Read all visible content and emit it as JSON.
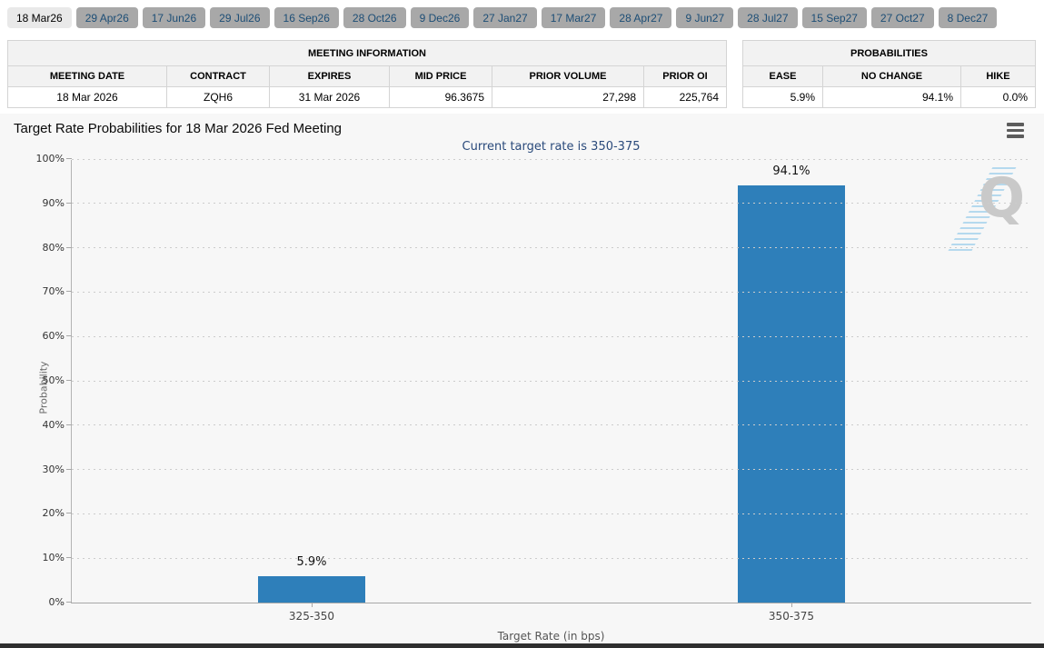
{
  "tabs": {
    "items": [
      {
        "label": "18 Mar26",
        "selected": true
      },
      {
        "label": "29 Apr26",
        "selected": false
      },
      {
        "label": "17 Jun26",
        "selected": false
      },
      {
        "label": "29 Jul26",
        "selected": false
      },
      {
        "label": "16 Sep26",
        "selected": false
      },
      {
        "label": "28 Oct26",
        "selected": false
      },
      {
        "label": "9 Dec26",
        "selected": false
      },
      {
        "label": "27 Jan27",
        "selected": false
      },
      {
        "label": "17 Mar27",
        "selected": false
      },
      {
        "label": "28 Apr27",
        "selected": false
      },
      {
        "label": "9 Jun27",
        "selected": false
      },
      {
        "label": "28 Jul27",
        "selected": false
      },
      {
        "label": "15 Sep27",
        "selected": false
      },
      {
        "label": "27 Oct27",
        "selected": false
      },
      {
        "label": "8 Dec27",
        "selected": false
      }
    ]
  },
  "meeting_info": {
    "title": "MEETING INFORMATION",
    "columns": [
      "MEETING DATE",
      "CONTRACT",
      "EXPIRES",
      "MID PRICE",
      "PRIOR VOLUME",
      "PRIOR OI"
    ],
    "row": [
      "18 Mar 2026",
      "ZQH6",
      "31 Mar 2026",
      "96.3675",
      "27,298",
      "225,764"
    ]
  },
  "probabilities": {
    "title": "PROBABILITIES",
    "columns": [
      "EASE",
      "NO CHANGE",
      "HIKE"
    ],
    "row": [
      "5.9%",
      "94.1%",
      "0.0%"
    ]
  },
  "chart_data": {
    "type": "bar",
    "title": "Target Rate Probabilities for 18 Mar 2026 Fed Meeting",
    "subtitle": "Current target rate is 350-375",
    "categories": [
      "325-350",
      "350-375"
    ],
    "values": [
      5.9,
      94.1
    ],
    "value_labels": [
      "5.9%",
      "94.1%"
    ],
    "xlabel": "Target Rate (in bps)",
    "ylabel": "Probability",
    "ylim": [
      0,
      100
    ],
    "y_ticks": [
      "0%",
      "10%",
      "20%",
      "30%",
      "40%",
      "50%",
      "60%",
      "70%",
      "80%",
      "90%",
      "100%"
    ],
    "legend": "none",
    "grid": "horizontal-dotted",
    "bar_color": "#2e7fba",
    "watermark": "Q"
  },
  "icons": {
    "menu": "chart-menu"
  },
  "colors": {
    "bar": "#2e7fba",
    "panel_bg": "#f7f7f7",
    "tab_selected_bg": "#e9e9e9",
    "tab_bg": "#a8a8a8",
    "tab_text": "#1d4e76",
    "subtitle_text": "#2a4a7b",
    "table_header_bg": "#f2f2f2",
    "footer_bar": "#2e2e2e"
  }
}
